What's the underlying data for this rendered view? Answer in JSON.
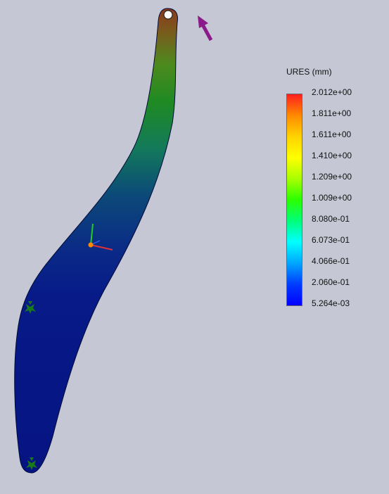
{
  "legend": {
    "title": "URES (mm)",
    "ticks": [
      "2.012e+00",
      "1.811e+00",
      "1.611e+00",
      "1.410e+00",
      "1.209e+00",
      "1.009e+00",
      "8.080e-01",
      "6.073e-01",
      "4.066e-01",
      "2.060e-01",
      "5.264e-03"
    ]
  },
  "colors": {
    "background": "#c5c8d4",
    "load_arrow": "#8b1a8b",
    "fixture": "#1a7a1a"
  },
  "icons": [
    "load-arrow-icon",
    "fixture-icon",
    "coordinate-triad-icon"
  ]
}
